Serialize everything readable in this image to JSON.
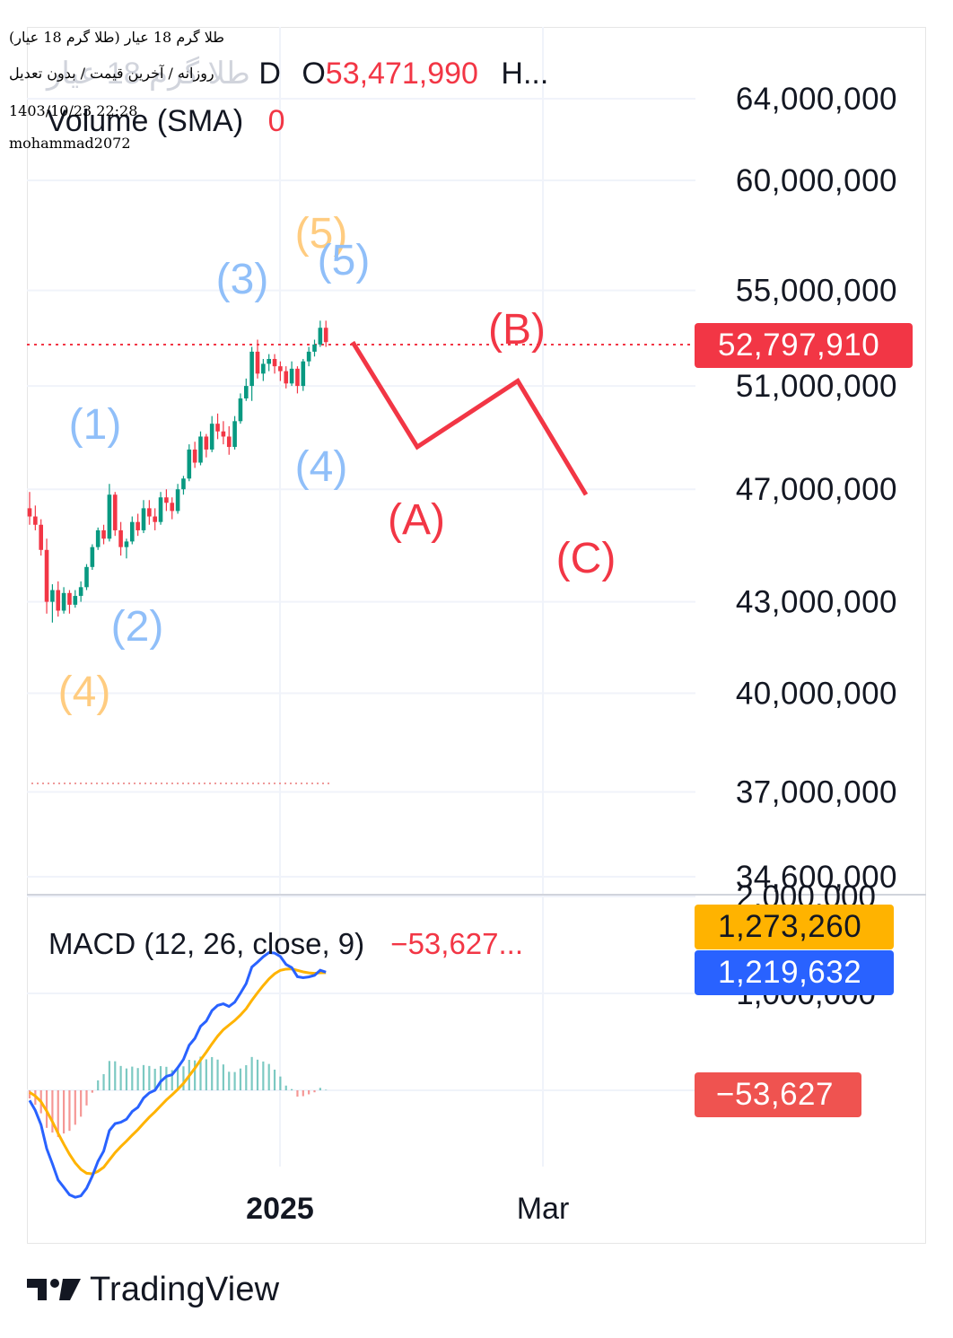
{
  "header": {
    "title_fragment": "طلا گرم 18 عیار",
    "interval": "D",
    "open_label": "O",
    "open_value": "53,471,990",
    "more": "H...",
    "volume_label": "Volume (SMA)",
    "volume_value": "0"
  },
  "overlay": {
    "symbol_line": "طلا گرم 18 عیار (طلا گرم 18 عیار)",
    "settings_line": "روزانه / آخرین قیمت / بدون تعدیل",
    "timestamp": "1403/10/23 22:28",
    "author": "mohammad2072"
  },
  "price_axis_labels": [
    "64,000,000",
    "60,000,000",
    "55,000,000",
    "51,000,000",
    "47,000,000",
    "43,000,000",
    "40,000,000",
    "37,000,000",
    "34,600,000"
  ],
  "last_price_tag": "52,797,910",
  "macd": {
    "label": "MACD (12, 26, close, 9)",
    "value_text": "−53,627...",
    "axis_labels": [
      "2,000,000",
      "1,000,000"
    ],
    "signal_tag": "1,273,260",
    "macd_tag": "1,219,632",
    "hist_tag": "−53,627"
  },
  "time_axis": [
    "2025",
    "Mar"
  ],
  "wave_labels": {
    "primary": [
      "(1)",
      "(2)",
      "(3)",
      "(4)",
      "(5)"
    ],
    "degree": [
      "(4)",
      "(5)"
    ],
    "correction": [
      "(A)",
      "(B)",
      "(C)"
    ]
  },
  "brand": "TradingView",
  "colors": {
    "up": "#089981",
    "down": "#f23645",
    "wave_blue": "#90bff9",
    "wave_orange": "#ffcc80",
    "correction": "#f23645",
    "macd_line": "#2962ff",
    "signal_line": "#ffb300",
    "hist_up": "#26a69a",
    "hist_down": "#ef5350"
  },
  "chart_data": {
    "type": "line",
    "title": "طلا گرم 18 عیار",
    "price_scale": "log",
    "last_price": 52797910,
    "open": 53471990,
    "candles_ohlc": [
      [
        46300000,
        46900000,
        45700000,
        46000000
      ],
      [
        46000000,
        46400000,
        45500000,
        45700000
      ],
      [
        45700000,
        45900000,
        44600000,
        44800000
      ],
      [
        44800000,
        45200000,
        42600000,
        43000000
      ],
      [
        43000000,
        43600000,
        42300000,
        43400000
      ],
      [
        43400000,
        43700000,
        42500000,
        42700000
      ],
      [
        42700000,
        43500000,
        42600000,
        43300000
      ],
      [
        43300000,
        43400000,
        42600000,
        42900000
      ],
      [
        42900000,
        43400000,
        42800000,
        43200000
      ],
      [
        43200000,
        43700000,
        43000000,
        43500000
      ],
      [
        43500000,
        44300000,
        43400000,
        44200000
      ],
      [
        44200000,
        45000000,
        44100000,
        44900000
      ],
      [
        44900000,
        45600000,
        44800000,
        45500000
      ],
      [
        45500000,
        45700000,
        45000000,
        45200000
      ],
      [
        45200000,
        47200000,
        45100000,
        46800000
      ],
      [
        46800000,
        46900000,
        45300000,
        45500000
      ],
      [
        45500000,
        45800000,
        44600000,
        44900000
      ],
      [
        44900000,
        45200000,
        44500000,
        45100000
      ],
      [
        45100000,
        46000000,
        45000000,
        45800000
      ],
      [
        45800000,
        46100000,
        45300000,
        45500000
      ],
      [
        45500000,
        46600000,
        45400000,
        46300000
      ],
      [
        46300000,
        46600000,
        45700000,
        46000000
      ],
      [
        46000000,
        46300000,
        45500000,
        45800000
      ],
      [
        45800000,
        46900000,
        45700000,
        46700000
      ],
      [
        46700000,
        47000000,
        46200000,
        46500000
      ],
      [
        46500000,
        46700000,
        45900000,
        46200000
      ],
      [
        46200000,
        47200000,
        46100000,
        47000000
      ],
      [
        47000000,
        47500000,
        46800000,
        47400000
      ],
      [
        47400000,
        48700000,
        47300000,
        48500000
      ],
      [
        48500000,
        48800000,
        47800000,
        48000000
      ],
      [
        48000000,
        49200000,
        47900000,
        49000000
      ],
      [
        49000000,
        49100000,
        48200000,
        48500000
      ],
      [
        48500000,
        49800000,
        48400000,
        49500000
      ],
      [
        49500000,
        49900000,
        48900000,
        49200000
      ],
      [
        49200000,
        49600000,
        48700000,
        49000000
      ],
      [
        49000000,
        49400000,
        48300000,
        48600000
      ],
      [
        48600000,
        49800000,
        48500000,
        49600000
      ],
      [
        49600000,
        50700000,
        49500000,
        50500000
      ],
      [
        50500000,
        51300000,
        50400000,
        51000000
      ],
      [
        51000000,
        52600000,
        50400000,
        52400000
      ],
      [
        52400000,
        52900000,
        51300000,
        51500000
      ],
      [
        51500000,
        52100000,
        51200000,
        51900000
      ],
      [
        51900000,
        52300000,
        51600000,
        52100000
      ],
      [
        52100000,
        52300000,
        51500000,
        51800000
      ],
      [
        51800000,
        52000000,
        51200000,
        51600000
      ],
      [
        51600000,
        51800000,
        50900000,
        51100000
      ],
      [
        51100000,
        52000000,
        51000000,
        51700000
      ],
      [
        51700000,
        51800000,
        50700000,
        51000000
      ],
      [
        51000000,
        52100000,
        50800000,
        52000000
      ],
      [
        52000000,
        52600000,
        51800000,
        52400000
      ],
      [
        52400000,
        52900000,
        52200000,
        52700000
      ],
      [
        52700000,
        53700000,
        52600000,
        53400000
      ],
      [
        53400000,
        53700000,
        52600000,
        52797910
      ]
    ],
    "projection_abc": [
      {
        "label": "start",
        "price": 52797910
      },
      {
        "label": "(A)",
        "price": 48600000
      },
      {
        "label": "(B)",
        "price": 51200000
      },
      {
        "label": "(C)",
        "price": 46800000
      }
    ],
    "macd_series": {
      "macd": 1219632,
      "signal": 1273260,
      "histogram": -53627
    }
  }
}
